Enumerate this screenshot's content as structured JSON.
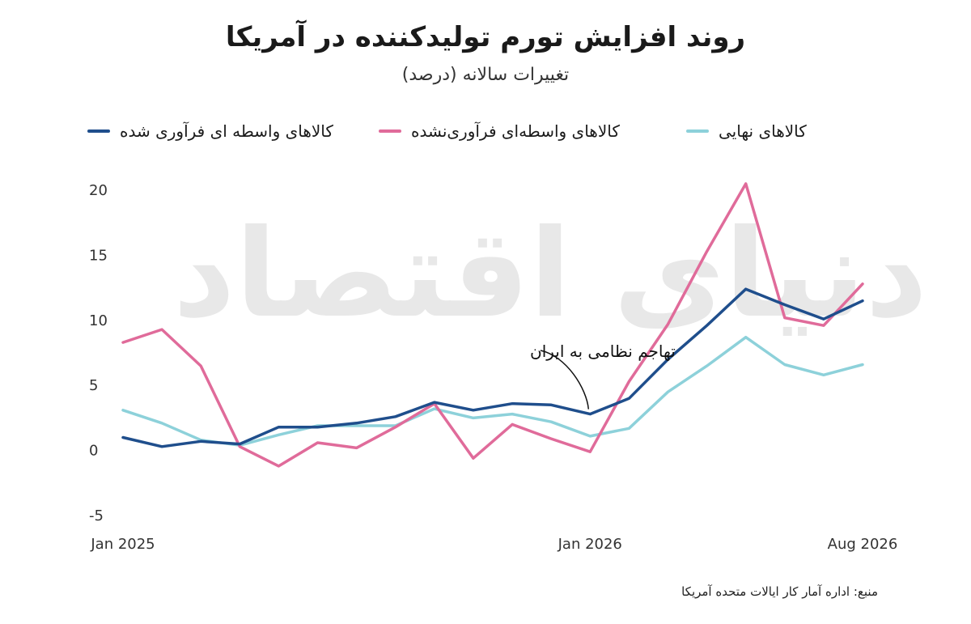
{
  "title": "روند افزایش تورم تولیدکننده در آمریکا",
  "subtitle": "تغییرات سالانه (درصد)",
  "source": "منبع: اداره آمار کار ایالات متحده آمریکا",
  "watermark": "دنیای اقتصاد",
  "chart_data": {
    "type": "line",
    "title": "روند افزایش تورم تولیدکننده در آمریکا",
    "subtitle": "تغییرات سالانه (درصد)",
    "x_tick_labels": [
      "Jan 2025",
      "Jan 2026",
      "Aug 2026"
    ],
    "ylim": [
      -5,
      20
    ],
    "y_ticks": [
      -5,
      0,
      5,
      10,
      15,
      20
    ],
    "grid": false,
    "legend_position": "top",
    "series": [
      {
        "name": "کالاهای واسطه ای فرآوری شده",
        "color": "#1f4e8c",
        "values": [
          1.0,
          0.3,
          0.7,
          0.5,
          1.8,
          1.8,
          2.1,
          2.6,
          3.7,
          3.1,
          3.6,
          3.5,
          2.8,
          4.0,
          7.0,
          9.6,
          12.4,
          11.2,
          10.1,
          11.5
        ]
      },
      {
        "name": "کالاهای واسطه‌ای فرآوری‌نشده",
        "color": "#e06b9a",
        "values": [
          8.3,
          9.3,
          6.5,
          0.3,
          -1.2,
          0.6,
          0.2,
          1.8,
          3.6,
          -0.6,
          2.0,
          0.9,
          -0.1,
          5.3,
          9.7,
          15.3,
          20.5,
          10.2,
          9.6,
          12.8
        ]
      },
      {
        "name": "کالاهای نهایی",
        "color": "#8dd1da",
        "values": [
          3.1,
          2.1,
          0.8,
          0.4,
          1.2,
          1.9,
          1.9,
          1.9,
          3.2,
          2.5,
          2.8,
          2.2,
          1.1,
          1.7,
          4.5,
          6.5,
          8.7,
          6.6,
          5.8,
          6.6
        ]
      }
    ],
    "annotations": [
      {
        "text": "تهاجم نظامی به ایران",
        "x_index": 12
      }
    ]
  }
}
